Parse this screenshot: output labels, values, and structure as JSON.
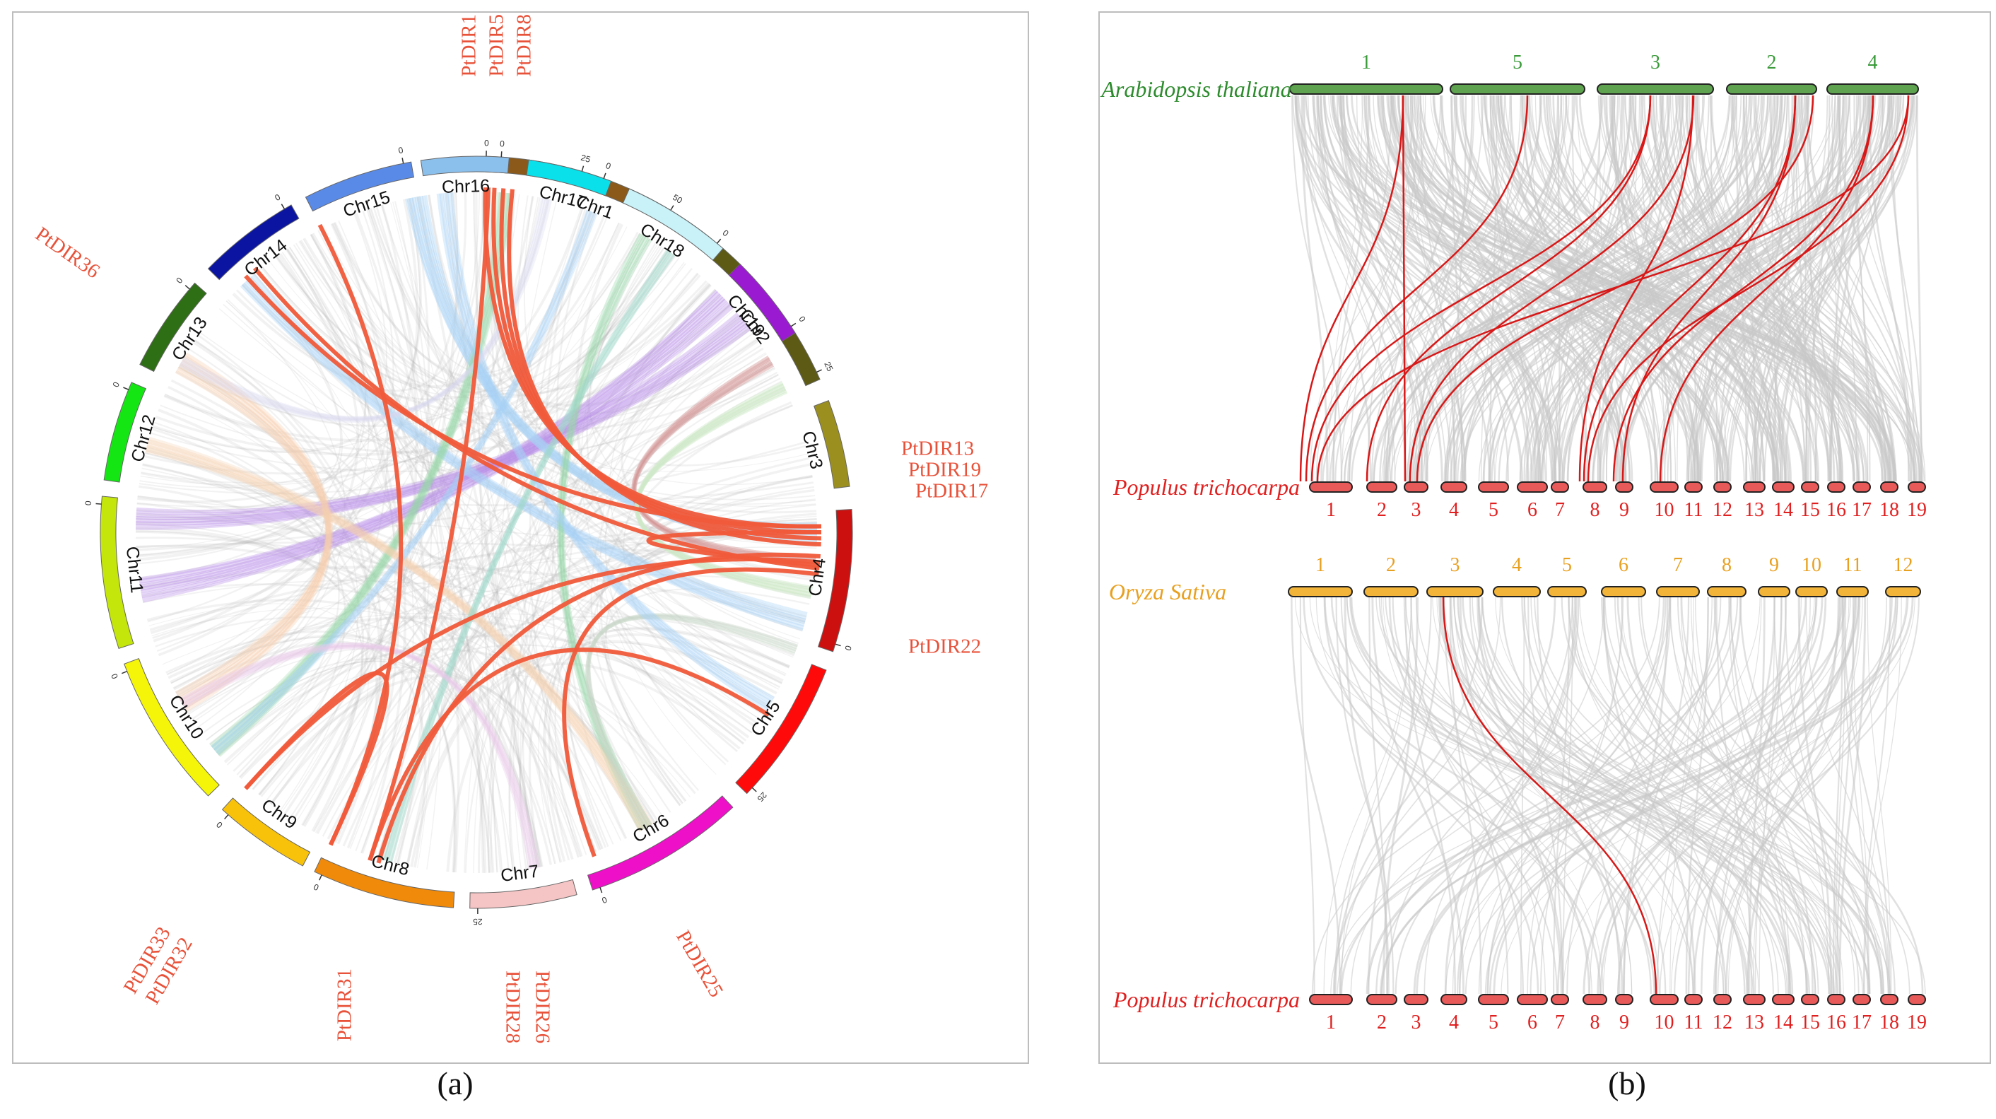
{
  "panel_a": {
    "caption": "(a)",
    "chromosomes": [
      {
        "label": "Chr1",
        "color": "#8b5a1a",
        "ticks": [
          "0",
          "25",
          "50"
        ]
      },
      {
        "label": "Chr2",
        "color": "#5c5a14",
        "ticks": [
          "25"
        ]
      },
      {
        "label": "Chr3",
        "color": "#9a8f1f",
        "ticks": []
      },
      {
        "label": "Chr4",
        "color": "#cc1010",
        "ticks": [
          "0"
        ]
      },
      {
        "label": "Chr5",
        "color": "#ff0a0a",
        "ticks": [
          "25"
        ]
      },
      {
        "label": "Chr6",
        "color": "#ee10c8",
        "ticks": [
          "0"
        ]
      },
      {
        "label": "Chr7",
        "color": "#f5c4c4",
        "ticks": [
          "25"
        ]
      },
      {
        "label": "Chr8",
        "color": "#f08a0a",
        "ticks": [
          "0"
        ]
      },
      {
        "label": "Chr9",
        "color": "#f8c20a",
        "ticks": [
          "0"
        ]
      },
      {
        "label": "Chr10",
        "color": "#f5f50a",
        "ticks": [
          "0"
        ]
      },
      {
        "label": "Chr11",
        "color": "#c4e60a",
        "ticks": [
          "0"
        ]
      },
      {
        "label": "Chr12",
        "color": "#14e614",
        "ticks": [
          "0"
        ]
      },
      {
        "label": "Chr13",
        "color": "#2e6e14",
        "ticks": [
          "0"
        ]
      },
      {
        "label": "Chr14",
        "color": "#0a14a0",
        "ticks": [
          "0"
        ]
      },
      {
        "label": "Chr15",
        "color": "#5a8ae8",
        "ticks": [
          "0"
        ]
      },
      {
        "label": "Chr16",
        "color": "#8cc0ec",
        "ticks": [
          "0"
        ]
      },
      {
        "label": "Chr17",
        "color": "#0ae0ea",
        "ticks": [
          "0"
        ]
      },
      {
        "label": "Chr18",
        "color": "#c8f2f8",
        "ticks": [
          "0"
        ]
      },
      {
        "label": "Chr19",
        "color": "#9a1ad2",
        "ticks": [
          "0"
        ]
      }
    ],
    "gene_labels": [
      "PtDIR1",
      "PtDIR5",
      "PtDIR8",
      "PtDIR13",
      "PtDIR19",
      "PtDIR17",
      "PtDIR22",
      "PtDIR25",
      "PtDIR26",
      "PtDIR28",
      "PtDIR31",
      "PtDIR33",
      "PtDIR32",
      "PtDIR36"
    ]
  },
  "panel_b": {
    "caption": "(b)",
    "arabidopsis": {
      "name": "Arabidopsis thaliana",
      "color": "#2e8b2e",
      "chromosomes": [
        "1",
        "5",
        "3",
        "2",
        "4"
      ]
    },
    "populus_top": {
      "name": "Populus trichocarpa",
      "color": "#e02020",
      "chromosomes": [
        "1",
        "2",
        "3",
        "4",
        "5",
        "6",
        "7",
        "8",
        "9",
        "10",
        "11",
        "12",
        "13",
        "14",
        "15",
        "16",
        "17",
        "18",
        "19"
      ]
    },
    "oryza": {
      "name": "Oryza Sativa",
      "color": "#e8a020",
      "chromosomes": [
        "1",
        "2",
        "3",
        "4",
        "5",
        "6",
        "7",
        "8",
        "9",
        "10",
        "11",
        "12"
      ]
    },
    "populus_bottom": {
      "name": "Populus trichocarpa",
      "color": "#e02020",
      "chromosomes": [
        "1",
        "2",
        "3",
        "4",
        "5",
        "6",
        "7",
        "8",
        "9",
        "10",
        "11",
        "12",
        "13",
        "14",
        "15",
        "16",
        "17",
        "18",
        "19"
      ]
    }
  }
}
